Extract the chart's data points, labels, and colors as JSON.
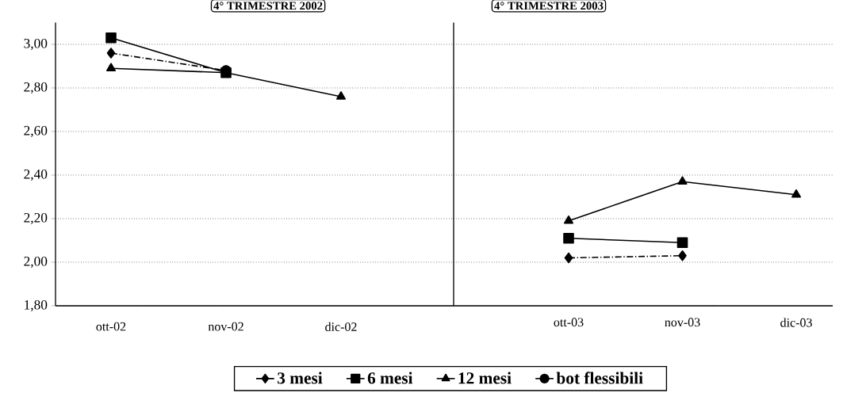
{
  "chart_data": [
    {
      "type": "line",
      "title": "4° TRIMESTRE 2002",
      "categories": [
        "ott-02",
        "nov-02",
        "dic-02"
      ],
      "series": [
        {
          "name": "3   mesi",
          "color": "#000000",
          "marker": "diamond",
          "line_style": "dashed",
          "values": [
            2.96,
            2.88,
            null
          ]
        },
        {
          "name": "6   mesi",
          "color": "#000000",
          "marker": "square",
          "line_style": "solid",
          "values": [
            3.03,
            2.87,
            null
          ]
        },
        {
          "name": "12 mesi",
          "color": "#000000",
          "marker": "triangle",
          "line_style": "solid",
          "values": [
            2.89,
            2.87,
            2.76
          ]
        },
        {
          "name": "bot flessibili",
          "color": "#000000",
          "marker": "circle",
          "line_style": "solid",
          "values": [
            null,
            2.88,
            null
          ]
        }
      ],
      "ylim": [
        1.8,
        3.1
      ],
      "yticks": [
        {
          "value": 1.8,
          "label": "1,80"
        },
        {
          "value": 2.0,
          "label": "2,00"
        },
        {
          "value": 2.2,
          "label": "2,20"
        },
        {
          "value": 2.4,
          "label": "2,40"
        },
        {
          "value": 2.6,
          "label": "2,60"
        },
        {
          "value": 2.8,
          "label": "2,80"
        },
        {
          "value": 3.0,
          "label": "3,00"
        }
      ],
      "grid": "y",
      "legend": "bottom"
    },
    {
      "type": "line",
      "title": "4° TRIMESTRE 2003",
      "categories": [
        "ott-03",
        "nov-03",
        "dic-03"
      ],
      "series": [
        {
          "color": "#000000",
          "marker": "diamond",
          "line_style": "dashed",
          "values": [
            2.02,
            2.03,
            null
          ]
        },
        {
          "color": "#000000",
          "marker": "square",
          "line_style": "solid",
          "values": [
            2.11,
            2.09,
            null
          ]
        },
        {
          "color": "#000000",
          "marker": "triangle",
          "line_style": "solid",
          "values": [
            2.19,
            2.37,
            2.31
          ]
        }
      ],
      "ylim": [
        1.8,
        3.1
      ],
      "yticks": [
        {
          "value": 1.8,
          "label": null
        },
        {
          "value": 2.0,
          "label": null
        },
        {
          "value": 2.2,
          "label": null
        },
        {
          "value": 2.4,
          "label": null
        },
        {
          "value": 2.6,
          "label": null
        },
        {
          "value": 2.8,
          "label": null
        },
        {
          "value": 3.0,
          "label": null
        }
      ],
      "grid": "y",
      "legend": false,
      "tick_labels": "x"
    }
  ]
}
